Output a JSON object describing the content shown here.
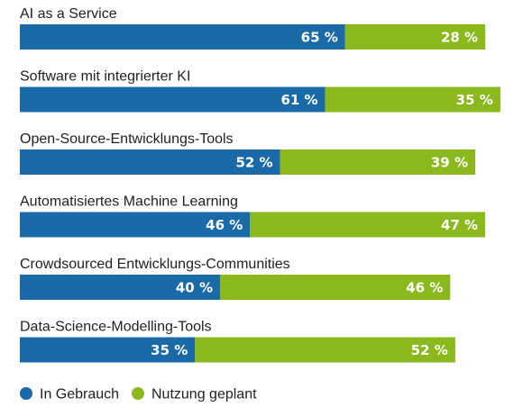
{
  "chart_data": {
    "type": "bar",
    "orientation": "horizontal",
    "stacked": true,
    "categories": [
      "AI as a Service",
      "Software mit integrierter KI",
      "Open-Source-Entwicklungs-Tools",
      "Automatisiertes Machine Learning",
      "Crowdsourced Entwicklungs-Communities",
      "Data-Science-Modelling-Tools"
    ],
    "series": [
      {
        "name": "In Gebrauch",
        "color": "#1a6aa8",
        "values": [
          65,
          61,
          52,
          46,
          40,
          35
        ],
        "value_labels": [
          "65 %",
          "61 %",
          "52 %",
          "46 %",
          "40 %",
          "35 %"
        ]
      },
      {
        "name": "Nutzung geplant",
        "color": "#8ab81d",
        "values": [
          28,
          35,
          39,
          47,
          46,
          52
        ],
        "value_labels": [
          "28 %",
          "35 %",
          "39 %",
          "47 %",
          "46 %",
          "52 %"
        ]
      }
    ],
    "unit": "%",
    "grid": false,
    "legend_position": "bottom-left"
  }
}
